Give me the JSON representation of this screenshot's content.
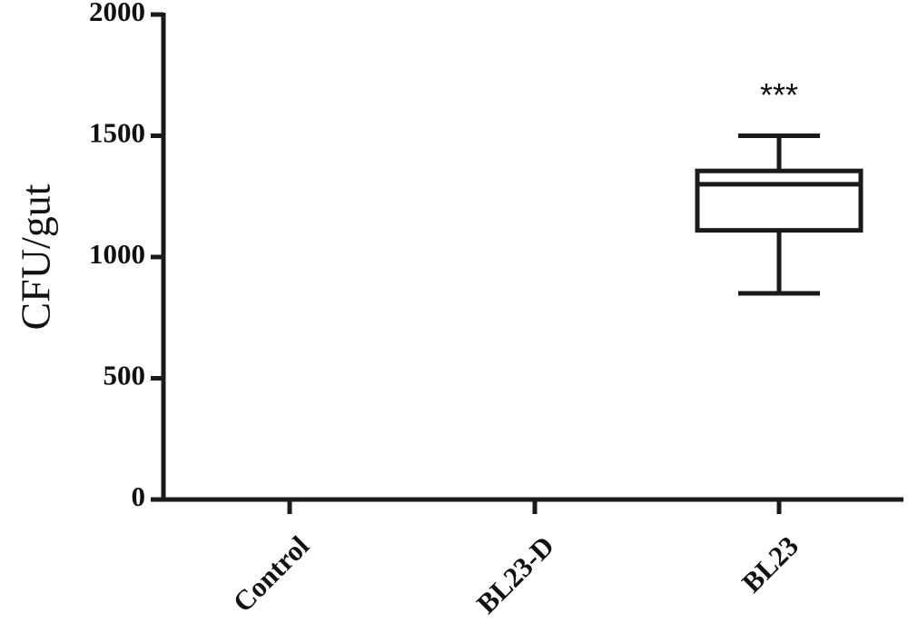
{
  "chart_data": {
    "type": "box",
    "y_label": "CFU/gut",
    "categories": [
      "Control",
      "BL23-D",
      "BL23"
    ],
    "min": [
      0,
      0,
      850
    ],
    "q1": [
      0,
      0,
      1110
    ],
    "median": [
      0,
      0,
      1300
    ],
    "q3": [
      0,
      0,
      1355
    ],
    "max": [
      0,
      0,
      1500
    ],
    "annotations": [
      null,
      null,
      "***"
    ],
    "ylim": [
      0,
      2000
    ],
    "yticks": [
      0,
      500,
      1000,
      1500,
      2000
    ],
    "color": "#1a1a1a"
  }
}
